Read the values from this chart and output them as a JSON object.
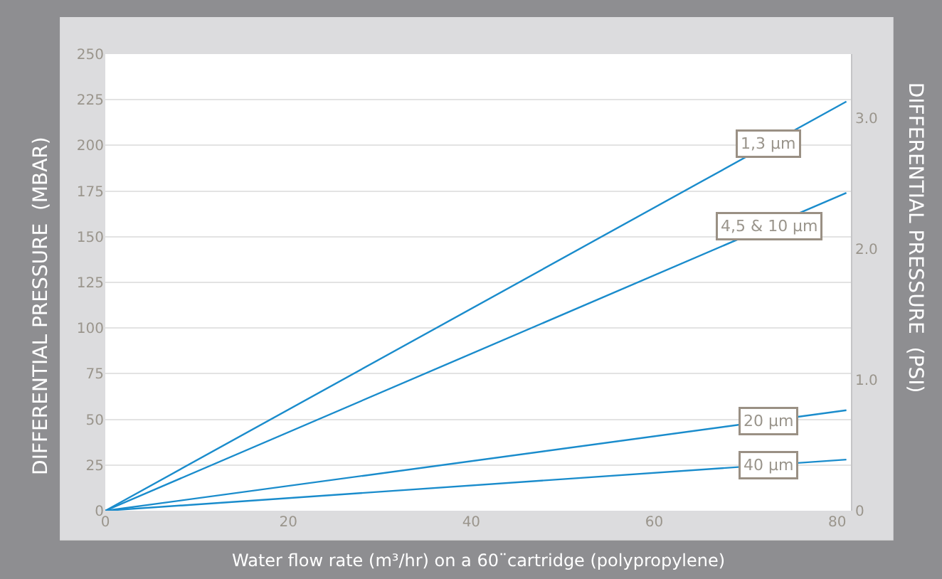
{
  "chart_data": {
    "type": "line",
    "xlabel": "Water flow rate (m³/hr) on a 60¨cartridge (polypropylene)",
    "ylabel": "DIFFERENTIAL PRESSURE  (MBAR)",
    "y2label": "DIFFERENTIAL PRESSURE  (PSI)",
    "x": [
      0,
      81
    ],
    "series": [
      {
        "name": "1,3 µm",
        "color": "#1a8ccc",
        "values": [
          0,
          224
        ]
      },
      {
        "name": "4,5 & 10 µm",
        "color": "#1a8ccc",
        "values": [
          0,
          174
        ]
      },
      {
        "name": "20 µm",
        "color": "#1a8ccc",
        "values": [
          0,
          55
        ]
      },
      {
        "name": "40 µm",
        "color": "#1a8ccc",
        "values": [
          0,
          28
        ]
      }
    ],
    "xlim": [
      0,
      81.5
    ],
    "xticks": [
      0,
      20,
      40,
      60,
      80
    ],
    "ylim": [
      0,
      250
    ],
    "yticks": [
      0,
      25,
      50,
      75,
      100,
      125,
      150,
      175,
      200,
      225,
      250
    ],
    "y2lim": [
      0,
      3.49
    ],
    "y2ticks": [
      0,
      {
        "value": 1,
        "label": "1.0"
      },
      {
        "value": 2,
        "label": "2.0"
      },
      {
        "value": 3,
        "label": "3.0"
      }
    ],
    "grid": "y",
    "legend": false,
    "marker": "none",
    "line_style": "solid"
  }
}
